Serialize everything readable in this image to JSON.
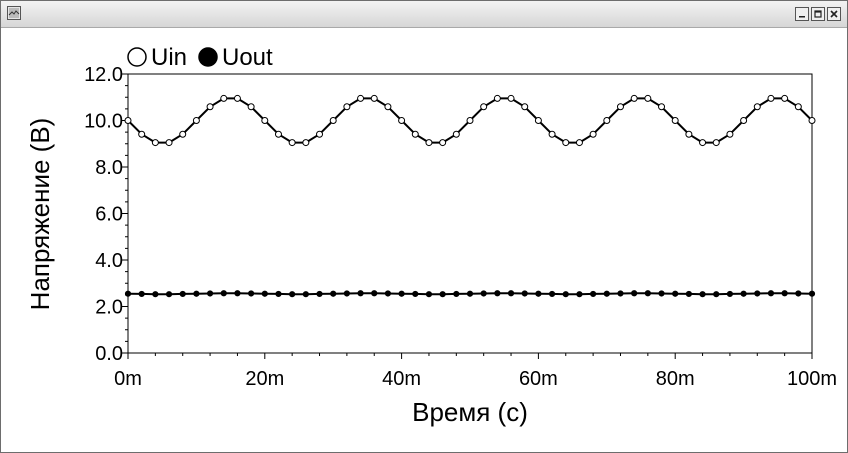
{
  "window": {
    "title": ""
  },
  "controls": {
    "minimize": "minimize-icon",
    "maximize": "maximize-icon",
    "close": "close-icon"
  },
  "chart_data": {
    "type": "line",
    "title": "",
    "xlabel": "Время (с)",
    "ylabel": "Напряжение (В)",
    "xlim": [
      0,
      100
    ],
    "ylim": [
      0,
      12
    ],
    "x_ticks": [
      "0m",
      "20m",
      "40m",
      "60m",
      "80m",
      "100m"
    ],
    "x_tick_values": [
      0,
      20,
      40,
      60,
      80,
      100
    ],
    "y_ticks": [
      "0.0",
      "2.0",
      "4.0",
      "6.0",
      "8.0",
      "10.0",
      "12.0"
    ],
    "y_tick_values": [
      0,
      2,
      4,
      6,
      8,
      10,
      12
    ],
    "grid": false,
    "legend_position": "top-left",
    "series": [
      {
        "name": "Uin",
        "marker": "open-circle",
        "color": "#000000",
        "x": [
          0,
          2,
          4,
          6,
          8,
          10,
          12,
          14,
          16,
          18,
          20,
          22,
          24,
          26,
          28,
          30,
          32,
          34,
          36,
          38,
          40,
          42,
          44,
          46,
          48,
          50,
          52,
          54,
          56,
          58,
          60,
          62,
          64,
          66,
          68,
          70,
          72,
          74,
          76,
          78,
          80,
          82,
          84,
          86,
          88,
          90,
          92,
          94,
          96,
          98,
          100
        ],
        "y": [
          10.0,
          9.41,
          9.05,
          9.05,
          9.41,
          10.0,
          10.59,
          10.95,
          10.95,
          10.59,
          10.0,
          9.41,
          9.05,
          9.05,
          9.41,
          10.0,
          10.59,
          10.95,
          10.95,
          10.59,
          10.0,
          9.41,
          9.05,
          9.05,
          9.41,
          10.0,
          10.59,
          10.95,
          10.95,
          10.59,
          10.0,
          9.41,
          9.05,
          9.05,
          9.41,
          10.0,
          10.59,
          10.95,
          10.95,
          10.59,
          10.0,
          9.41,
          9.05,
          9.05,
          9.41,
          10.0,
          10.59,
          10.95,
          10.95,
          10.59,
          10.0
        ]
      },
      {
        "name": "Uout",
        "marker": "filled-circle",
        "color": "#000000",
        "x": [
          0,
          2,
          4,
          6,
          8,
          10,
          12,
          14,
          16,
          18,
          20,
          22,
          24,
          26,
          28,
          30,
          32,
          34,
          36,
          38,
          40,
          42,
          44,
          46,
          48,
          50,
          52,
          54,
          56,
          58,
          60,
          62,
          64,
          66,
          68,
          70,
          72,
          74,
          76,
          78,
          80,
          82,
          84,
          86,
          88,
          90,
          92,
          94,
          96,
          98,
          100
        ],
        "y": [
          2.55,
          2.54,
          2.53,
          2.53,
          2.54,
          2.55,
          2.56,
          2.57,
          2.57,
          2.56,
          2.55,
          2.54,
          2.53,
          2.53,
          2.54,
          2.55,
          2.56,
          2.57,
          2.57,
          2.56,
          2.55,
          2.54,
          2.53,
          2.53,
          2.54,
          2.55,
          2.56,
          2.57,
          2.57,
          2.56,
          2.55,
          2.54,
          2.53,
          2.53,
          2.54,
          2.55,
          2.56,
          2.57,
          2.57,
          2.56,
          2.55,
          2.54,
          2.53,
          2.53,
          2.54,
          2.55,
          2.56,
          2.57,
          2.57,
          2.56,
          2.55
        ]
      }
    ]
  }
}
